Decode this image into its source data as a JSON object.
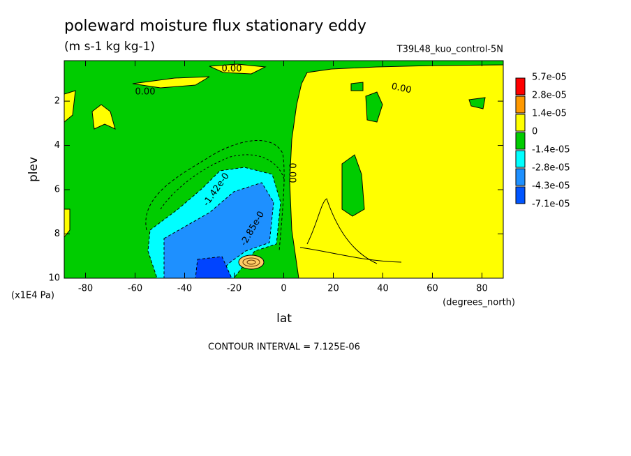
{
  "chart_data": {
    "type": "contour",
    "title": "poleward moisture flux stationary eddy",
    "subtitle": "(m s-1 kg kg-1)",
    "dataset": "T39L48_kuo_control-5N",
    "x_label": "lat",
    "x_units": "(degrees_north)",
    "y_label": "plev",
    "y_units": "(x1E4 Pa)",
    "footnote": "CONTOUR INTERVAL = 7.125E-06",
    "xlim": [
      -88.6,
      88.6
    ],
    "xticks": [
      -80,
      -60,
      -40,
      -20,
      0,
      20,
      40,
      60,
      80
    ],
    "ylim": [
      10,
      0.17
    ],
    "yticks": [
      2,
      4,
      6,
      8,
      10
    ],
    "levels": [
      {
        "value": 5.7e-05,
        "label": "5.7e-05"
      },
      {
        "value": 2.8e-05,
        "label": "2.8e-05"
      },
      {
        "value": 1.4e-05,
        "label": "1.4e-05"
      },
      0,
      {
        "value": -1.4e-05,
        "label": "-1.4e-05"
      },
      {
        "value": -2.8e-05,
        "label": "-2.8e-05"
      },
      {
        "value": -4.3e-05,
        "label": "-4.3e-05"
      },
      {
        "value": -7.1e-05,
        "label": "-7.1e-05"
      }
    ],
    "colors": [
      "#ff0000",
      "#ff9900",
      "#ffff00",
      "#00cc00",
      "#00ffff",
      "#1e90ff",
      "#0055ff"
    ],
    "contour_labels": [
      "0.00",
      "0.00",
      "0.00",
      "0.00",
      "-1.42e-0",
      "-2.85e-0"
    ]
  }
}
